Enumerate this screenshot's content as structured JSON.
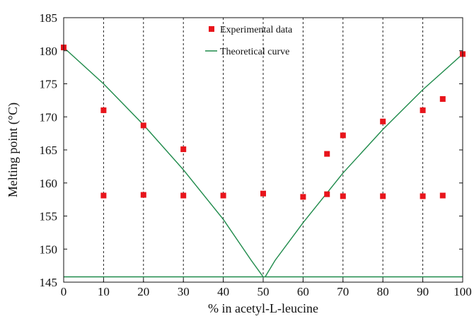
{
  "chart_data": {
    "type": "scatter",
    "title": "",
    "xlabel": "% in acetyl-L-leucine",
    "ylabel": "Melting point (°C)",
    "xlim": [
      0,
      100
    ],
    "ylim": [
      145,
      185
    ],
    "x_ticks": [
      0,
      10,
      20,
      30,
      40,
      50,
      60,
      70,
      80,
      90,
      100
    ],
    "y_ticks": [
      145,
      150,
      155,
      160,
      165,
      170,
      175,
      180,
      185
    ],
    "vertical_gridlines": [
      10,
      20,
      30,
      40,
      50,
      60,
      70,
      80,
      90
    ],
    "grid": "dashed vertical lines",
    "legend": "top-center",
    "series": [
      {
        "name": "Experimental data",
        "kind": "scatter",
        "color": "#e8141b",
        "points": [
          {
            "x": 0,
            "y": 180.5
          },
          {
            "x": 10,
            "y": 171.0
          },
          {
            "x": 10,
            "y": 158.1
          },
          {
            "x": 20,
            "y": 168.7
          },
          {
            "x": 20,
            "y": 158.2
          },
          {
            "x": 30,
            "y": 165.1
          },
          {
            "x": 30,
            "y": 158.1
          },
          {
            "x": 40,
            "y": 158.1
          },
          {
            "x": 50,
            "y": 158.4
          },
          {
            "x": 60,
            "y": 157.9
          },
          {
            "x": 66,
            "y": 164.4
          },
          {
            "x": 66,
            "y": 158.3
          },
          {
            "x": 70,
            "y": 167.2
          },
          {
            "x": 70,
            "y": 158.0
          },
          {
            "x": 80,
            "y": 169.3
          },
          {
            "x": 80,
            "y": 158.0
          },
          {
            "x": 90,
            "y": 171.0
          },
          {
            "x": 90,
            "y": 158.0
          },
          {
            "x": 95,
            "y": 172.7
          },
          {
            "x": 95,
            "y": 158.1
          },
          {
            "x": 100,
            "y": 179.5
          }
        ]
      },
      {
        "name": "Theoretical curve",
        "kind": "line",
        "color": "#1e8a4a",
        "curves": [
          [
            {
              "x": 0,
              "y": 180.5
            },
            {
              "x": 10,
              "y": 175.0
            },
            {
              "x": 20,
              "y": 168.8
            },
            {
              "x": 30,
              "y": 162.0
            },
            {
              "x": 40,
              "y": 154.5
            },
            {
              "x": 47,
              "y": 148.3
            },
            {
              "x": 50,
              "y": 145.8
            }
          ],
          [
            {
              "x": 50.5,
              "y": 145.8
            },
            {
              "x": 53,
              "y": 148.3
            },
            {
              "x": 60,
              "y": 154.0
            },
            {
              "x": 70,
              "y": 161.5
            },
            {
              "x": 80,
              "y": 168.1
            },
            {
              "x": 90,
              "y": 174.1
            },
            {
              "x": 100,
              "y": 179.5
            }
          ],
          [
            {
              "x": 0,
              "y": 145.8
            },
            {
              "x": 100,
              "y": 145.8
            }
          ]
        ]
      }
    ]
  }
}
